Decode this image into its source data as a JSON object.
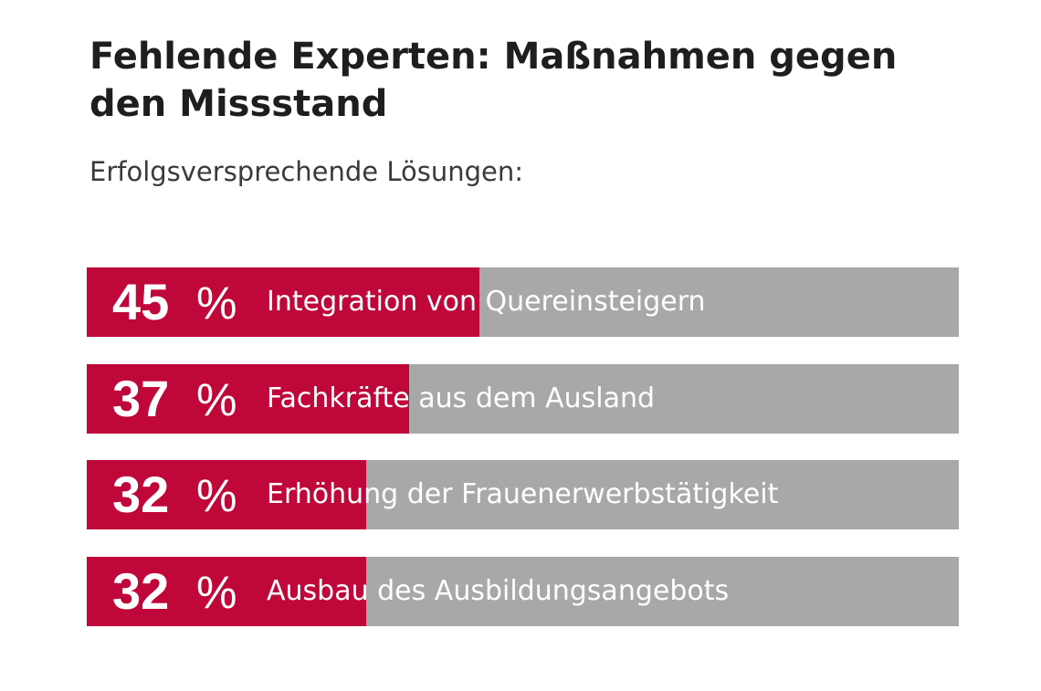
{
  "title": "Fehlende Experten: Maßnahmen gegen den Missstand",
  "subtitle": "Erfolgsversprechende Lösungen:",
  "colors": {
    "bar_fill": "#c0073a",
    "bar_track": "#a8a8a8",
    "text_light": "#ffffff"
  },
  "chart_data": {
    "type": "bar",
    "orientation": "horizontal",
    "title": "Fehlende Experten: Maßnahmen gegen den Missstand",
    "subtitle": "Erfolgsversprechende Lösungen:",
    "unit": "%",
    "xlim": [
      0,
      100
    ],
    "grid": false,
    "legend": "none",
    "categories": [
      "Integration von Quereinsteigern",
      "Fachkräfte aus dem Ausland",
      "Erhöhung der Frauenerwerbstätigkeit",
      "Ausbau des Ausbildungsangebots"
    ],
    "values": [
      45,
      37,
      32,
      32
    ],
    "value_labels": [
      "45",
      "37",
      "32",
      "32"
    ]
  }
}
